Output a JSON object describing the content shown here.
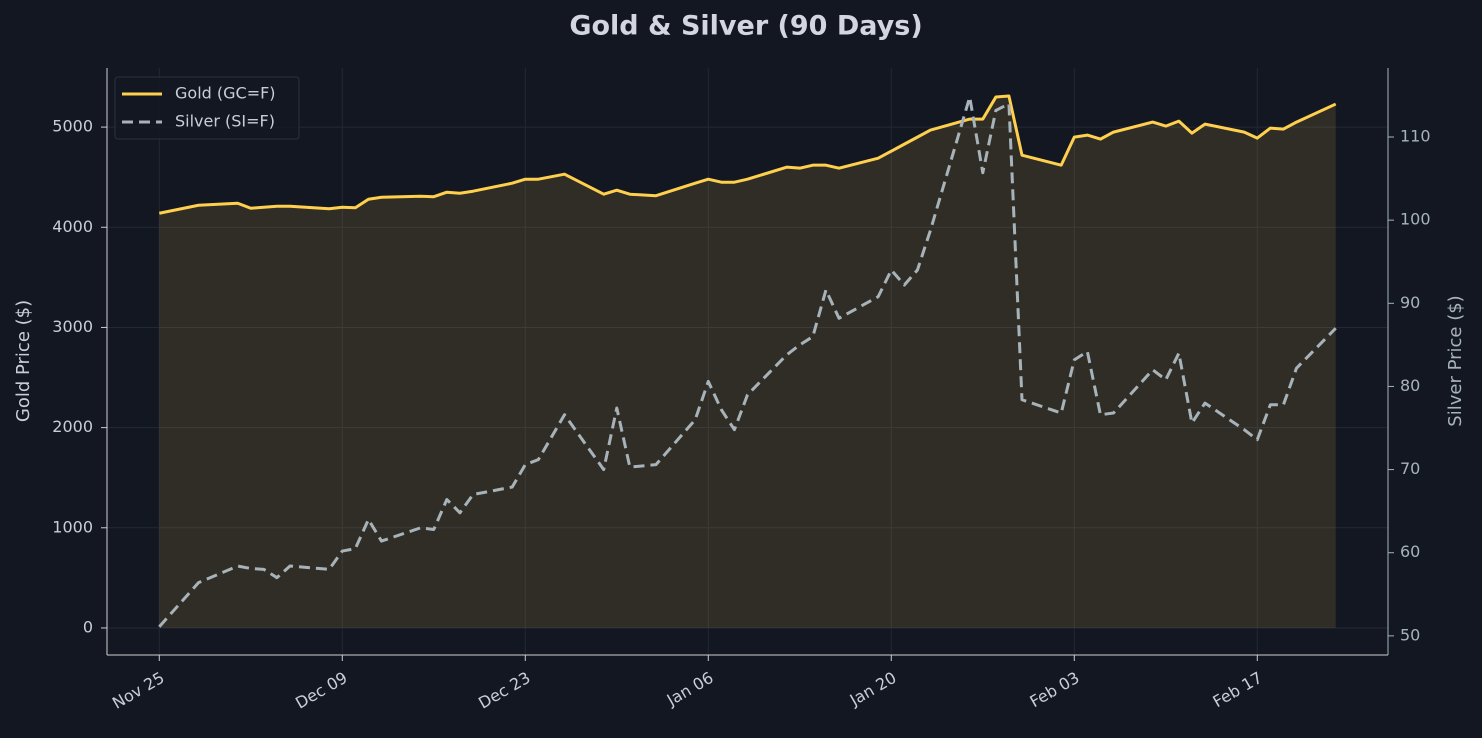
{
  "chart_data": {
    "type": "line",
    "title": "Gold & Silver (90 Days)",
    "y_label": "Gold Price ($)",
    "y2_label": "Silver Price ($)",
    "x": [
      "Nov 25",
      "Nov 28",
      "Dec 01",
      "Dec 02",
      "Dec 03",
      "Dec 04",
      "Dec 05",
      "Dec 08",
      "Dec 09",
      "Dec 10",
      "Dec 11",
      "Dec 12",
      "Dec 15",
      "Dec 16",
      "Dec 17",
      "Dec 18",
      "Dec 19",
      "Dec 22",
      "Dec 23",
      "Dec 24",
      "Dec 26",
      "Dec 29",
      "Dec 30",
      "Dec 31",
      "Jan 02",
      "Jan 05",
      "Jan 06",
      "Jan 07",
      "Jan 08",
      "Jan 09",
      "Jan 12",
      "Jan 13",
      "Jan 14",
      "Jan 15",
      "Jan 16",
      "Jan 19",
      "Jan 20",
      "Jan 21",
      "Jan 22",
      "Jan 23",
      "Jan 26",
      "Jan 27",
      "Jan 28",
      "Jan 29",
      "Jan 30",
      "Feb 02",
      "Feb 03",
      "Feb 04",
      "Feb 05",
      "Feb 06",
      "Feb 09",
      "Feb 10",
      "Feb 11",
      "Feb 12",
      "Feb 13",
      "Feb 16",
      "Feb 17",
      "Feb 18",
      "Feb 19",
      "Feb 20",
      "Feb 23"
    ],
    "series": [
      {
        "name": "Gold (GC=F)",
        "color": "#ffd04d",
        "fill": true,
        "dash": false,
        "values": [
          4140,
          4220,
          4240,
          4190,
          4200,
          4210,
          4210,
          4185,
          4200,
          4195,
          4280,
          4300,
          4310,
          4305,
          4350,
          4340,
          4360,
          4440,
          4480,
          4480,
          4530,
          4330,
          4370,
          4330,
          4315,
          4440,
          4480,
          4450,
          4450,
          4480,
          4600,
          4590,
          4620,
          4620,
          4590,
          4690,
          4760,
          4830,
          4900,
          4970,
          5080,
          5080,
          5300,
          5310,
          4720,
          4620,
          4900,
          4920,
          4880,
          4950,
          5050,
          5010,
          5060,
          4940,
          5030,
          4950,
          4890,
          4990,
          4980,
          5050,
          5230
        ]
      },
      {
        "name": "Silver (SI=F)",
        "color": "#a7b3b9",
        "fill": false,
        "dash": true,
        "axis": "y2",
        "values": [
          51.1,
          56.4,
          58.4,
          58.1,
          58,
          57,
          58.4,
          58,
          60.2,
          60.5,
          64,
          61.4,
          63,
          62.8,
          66.4,
          64.8,
          67,
          67.9,
          70.6,
          71.2,
          76.6,
          70,
          77.4,
          70.3,
          70.6,
          76,
          80.6,
          77.2,
          74.8,
          79,
          83.8,
          85,
          86,
          91.6,
          88.2,
          90.8,
          94,
          92.2,
          94,
          98.8,
          114.8,
          105.7,
          113.2,
          114,
          78.4,
          76.8,
          83.2,
          84.2,
          76.6,
          76.8,
          82,
          80.8,
          84,
          75.6,
          78,
          74.8,
          73.6,
          77.8,
          77.8,
          82.2,
          87
        ]
      }
    ],
    "xlim": [
      "Nov 21",
      "Feb 27"
    ],
    "xticks": [
      "Nov 25",
      "Dec 09",
      "Dec 23",
      "Jan 06",
      "Jan 20",
      "Feb 03",
      "Feb 17"
    ],
    "ylim": [
      -270,
      5590
    ],
    "yticks": [
      0,
      1000,
      2000,
      3000,
      4000,
      5000
    ],
    "y2lim": [
      47.7,
      118.3
    ],
    "y2ticks": [
      50,
      60,
      70,
      80,
      90,
      100,
      110
    ],
    "grid": true,
    "legend": "upper left"
  }
}
